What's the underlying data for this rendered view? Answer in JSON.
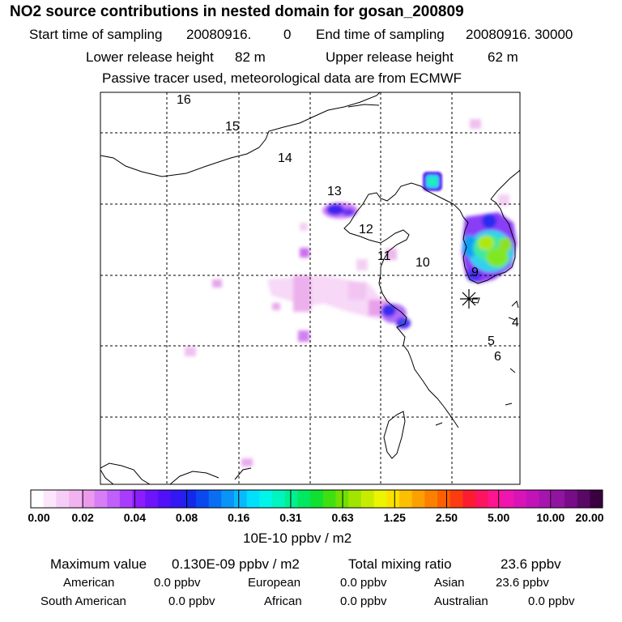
{
  "header": {
    "title": "NO2 source contributions in nested domain for gosan_200809",
    "start_label": "Start time of sampling",
    "start_value": "20080916.",
    "start_hour": "0",
    "end_label": "End time of sampling",
    "end_value": "20080916. 30000",
    "lower_label": "Lower release height",
    "lower_value": "82 m",
    "upper_label": "Upper release height",
    "upper_value": "62 m",
    "note": "Passive tracer used, meteorological data are from ECMWF"
  },
  "map": {
    "region_labels": [
      "16",
      "15",
      "14",
      "13",
      "12",
      "11",
      "10",
      "9",
      "4",
      "5",
      "6"
    ],
    "receptor_marker": "asterisk-icon"
  },
  "colorbar": {
    "tick_labels": [
      "0.00",
      "0.02",
      "0.04",
      "0.08",
      "0.16",
      "0.31",
      "0.63",
      "1.25",
      "2.50",
      "5.00",
      "10.00",
      "20.00"
    ],
    "unit": "10E-10 ppbv / m2",
    "colors": [
      "#ffffff",
      "#fbe6fb",
      "#f6cdf6",
      "#f1b4f1",
      "#ec9bec",
      "#d77ef6",
      "#c060fb",
      "#a83cfd",
      "#8c1efd",
      "#6e14fb",
      "#5010f8",
      "#3218f2",
      "#1428ec",
      "#0a48f0",
      "#0a6ef4",
      "#0a94f8",
      "#08bafc",
      "#00e0fc",
      "#00f4e8",
      "#00f4c0",
      "#00f090",
      "#00e860",
      "#10e030",
      "#40e010",
      "#70e000",
      "#a0e400",
      "#c8ec00",
      "#ecf400",
      "#fce000",
      "#fcc000",
      "#fca000",
      "#fc8000",
      "#fc6000",
      "#fc3c10",
      "#fc1c30",
      "#fc1460",
      "#fc1490",
      "#f014b0",
      "#d814b8",
      "#c014b8",
      "#a814b0",
      "#9014a0",
      "#780c88",
      "#5a0866",
      "#3a0040"
    ]
  },
  "stats": {
    "max_label": "Maximum value",
    "max_value": "0.130E-09 ppbv / m2",
    "total_label": "Total mixing ratio",
    "total_value": "23.6 ppbv",
    "regions": [
      {
        "name": "American",
        "value": "0.0 ppbv"
      },
      {
        "name": "European",
        "value": "0.0 ppbv"
      },
      {
        "name": "Asian",
        "value": "23.6 ppbv"
      },
      {
        "name": "South American",
        "value": "0.0 ppbv"
      },
      {
        "name": "African",
        "value": "0.0 ppbv"
      },
      {
        "name": "Australian",
        "value": "0.0 ppbv"
      }
    ]
  }
}
